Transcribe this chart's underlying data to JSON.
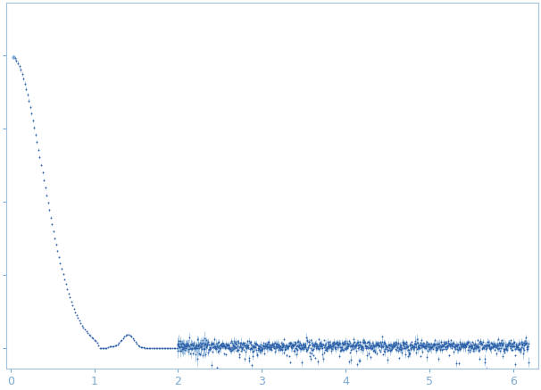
{
  "title": "",
  "xlabel": "",
  "ylabel": "",
  "xlim": [
    -0.05,
    6.3
  ],
  "x_ticks": [
    0,
    1,
    2,
    3,
    4,
    5,
    6
  ],
  "color": "#2d5fa8",
  "error_color": "#7aaad4",
  "bg_color": "#ffffff",
  "spine_color": "#a0c0e0",
  "tick_color": "#7aaad4",
  "tick_label_color": "#7aaad4",
  "figsize": [
    6.06,
    4.37
  ],
  "dpi": 100,
  "seed": 17
}
